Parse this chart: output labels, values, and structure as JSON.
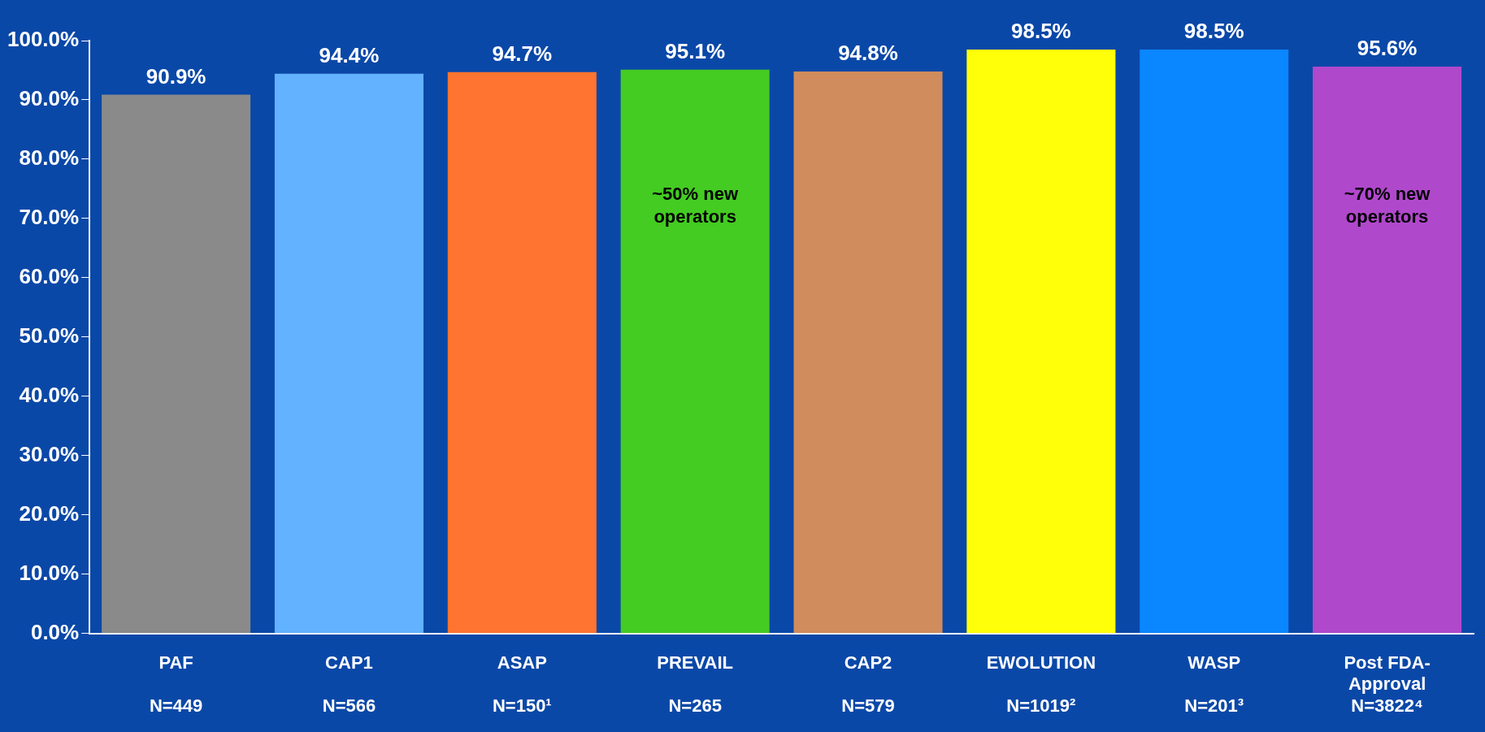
{
  "chart_data": {
    "type": "bar",
    "categories": [
      "PAF\nN=449",
      "CAP1\nN=566",
      "ASAP\nN=150¹",
      "PREVAIL\nN=265",
      "CAP2\nN=579",
      "EWOLUTION\nN=1019²",
      "WASP\nN=201³",
      "Post FDA-\nApproval\nN=3822⁴"
    ],
    "values": [
      90.9,
      94.4,
      94.7,
      95.1,
      94.8,
      98.5,
      98.5,
      95.6
    ],
    "colors": [
      "#8a8a8a",
      "#62b2ff",
      "#ff7430",
      "#44cc22",
      "#d08c5c",
      "#ffff0a",
      "#0a86ff",
      "#b048cc"
    ],
    "value_labels": [
      "90.9%",
      "94.4%",
      "94.7%",
      "95.1%",
      "94.8%",
      "98.5%",
      "98.5%",
      "95.6%"
    ],
    "ylim": [
      0,
      100
    ],
    "yticks": [
      {
        "value": 0,
        "label": "0.0%"
      },
      {
        "value": 10,
        "label": "10.0%"
      },
      {
        "value": 20,
        "label": "20.0%"
      },
      {
        "value": 30,
        "label": "30.0%"
      },
      {
        "value": 40,
        "label": "40.0%"
      },
      {
        "value": 50,
        "label": "50.0%"
      },
      {
        "value": 60,
        "label": "60.0%"
      },
      {
        "value": 70,
        "label": "70.0%"
      },
      {
        "value": 80,
        "label": "80.0%"
      },
      {
        "value": 90,
        "label": "90.0%"
      },
      {
        "value": 100,
        "label": "100.0%"
      }
    ],
    "grid": false,
    "legend": false,
    "annotations": [
      "~50% new operators",
      "~70% new operators"
    ]
  }
}
